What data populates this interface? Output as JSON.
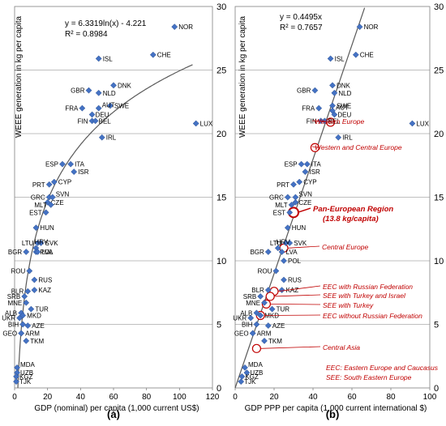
{
  "chart_data": [
    {
      "type": "scatter",
      "panel_label": "(a)",
      "xlabel": "GDP (nominal) per capita (1,000 current US$)",
      "ylabel": "WEEE generation in kg per capita",
      "xlim": [
        0,
        120
      ],
      "ylim": [
        0,
        30
      ],
      "xticks": [
        "0",
        "20",
        "40",
        "60",
        "80",
        "100",
        "120"
      ],
      "yticks": [
        "0",
        "5",
        "10",
        "15",
        "20",
        "25",
        "30"
      ],
      "grid": "horizontal",
      "equation": "y = 6.3319ln(x) - 4.221",
      "r_squared": "R² = 0.8984",
      "trendline": {
        "type": "log",
        "a": 6.3319,
        "b": -4.221
      },
      "points": [
        {
          "label": "NOR",
          "x": 97,
          "y": 28.4
        },
        {
          "label": "ISL",
          "x": 51,
          "y": 25.9
        },
        {
          "label": "CHE",
          "x": 84,
          "y": 26.2
        },
        {
          "label": "DNK",
          "x": 60,
          "y": 23.8
        },
        {
          "label": "GBR",
          "x": 45,
          "y": 23.4
        },
        {
          "label": "NLD",
          "x": 51,
          "y": 23.2
        },
        {
          "label": "SWE",
          "x": 58,
          "y": 22.2
        },
        {
          "label": "FRA",
          "x": 41,
          "y": 22.0
        },
        {
          "label": "AUT",
          "x": 51,
          "y": 22.0
        },
        {
          "label": "DEU",
          "x": 47,
          "y": 21.5
        },
        {
          "label": "FIN",
          "x": 47,
          "y": 21.0
        },
        {
          "label": "BEL",
          "x": 49,
          "y": 21.0
        },
        {
          "label": "LUX",
          "x": 110,
          "y": 20.8
        },
        {
          "label": "IRL",
          "x": 53,
          "y": 19.7
        },
        {
          "label": "ESP",
          "x": 29,
          "y": 17.6
        },
        {
          "label": "ITA",
          "x": 34,
          "y": 17.6
        },
        {
          "label": "ISR",
          "x": 36,
          "y": 17.0
        },
        {
          "label": "CYP",
          "x": 24,
          "y": 16.2
        },
        {
          "label": "PRT",
          "x": 21,
          "y": 16.0
        },
        {
          "label": "GRC",
          "x": 21,
          "y": 15.0
        },
        {
          "label": "SVN",
          "x": 23,
          "y": 15.0
        },
        {
          "label": "CZE",
          "x": 20,
          "y": 14.6
        },
        {
          "label": "MLT",
          "x": 22,
          "y": 14.4
        },
        {
          "label": "EST",
          "x": 19,
          "y": 13.8
        },
        {
          "label": "HUN",
          "x": 13,
          "y": 12.6
        },
        {
          "label": "LTU",
          "x": 14,
          "y": 11.4
        },
        {
          "label": "SVK",
          "x": 16,
          "y": 11.4
        },
        {
          "label": "HRV",
          "x": 13,
          "y": 11.0
        },
        {
          "label": "POL",
          "x": 13,
          "y": 10.7
        },
        {
          "label": "LVA",
          "x": 14,
          "y": 10.7
        },
        {
          "label": "BGR",
          "x": 7,
          "y": 10.7
        },
        {
          "label": "ROU",
          "x": 9,
          "y": 9.2
        },
        {
          "label": "RUS",
          "x": 12,
          "y": 8.5
        },
        {
          "label": "BLR",
          "x": 8,
          "y": 7.6
        },
        {
          "label": "KAZ",
          "x": 12,
          "y": 7.7
        },
        {
          "label": "SRB",
          "x": 6,
          "y": 7.2
        },
        {
          "label": "MNE",
          "x": 7,
          "y": 6.7
        },
        {
          "label": "TUR",
          "x": 10,
          "y": 6.2
        },
        {
          "label": "ALB",
          "x": 4,
          "y": 5.9
        },
        {
          "label": "MKD",
          "x": 5,
          "y": 5.7
        },
        {
          "label": "UKR",
          "x": 3,
          "y": 5.5
        },
        {
          "label": "BIH",
          "x": 5,
          "y": 5.0
        },
        {
          "label": "AZE",
          "x": 8,
          "y": 4.9
        },
        {
          "label": "GEO",
          "x": 4,
          "y": 4.3
        },
        {
          "label": "ARM",
          "x": 4,
          "y": 4.3
        },
        {
          "label": "TKM",
          "x": 7,
          "y": 3.7
        },
        {
          "label": "MDA",
          "x": 1.5,
          "y": 1.6
        },
        {
          "label": "UZB",
          "x": 1.5,
          "y": 1.2
        },
        {
          "label": "KGZ",
          "x": 1,
          "y": 0.9
        },
        {
          "label": "TJK",
          "x": 1,
          "y": 0.5
        }
      ]
    },
    {
      "type": "scatter",
      "panel_label": "(b)",
      "xlabel": "GDP PPP per capita (1,000 current international $)",
      "ylabel": "WEEE generation in kg per capita",
      "xlim": [
        0,
        100
      ],
      "ylim": [
        0,
        30
      ],
      "xticks": [
        "0",
        "20",
        "40",
        "60",
        "80",
        "100"
      ],
      "yticks": [
        "0",
        "5",
        "10",
        "15",
        "20",
        "25",
        "30"
      ],
      "grid": "horizontal",
      "equation": "y = 0.4495x",
      "r_squared": "R² = 0.7657",
      "trendline": {
        "type": "linear",
        "slope": 0.4495
      },
      "points": [
        {
          "label": "NOR",
          "x": 64,
          "y": 28.4
        },
        {
          "label": "ISL",
          "x": 49,
          "y": 25.9
        },
        {
          "label": "CHE",
          "x": 62,
          "y": 26.2
        },
        {
          "label": "DNK",
          "x": 50,
          "y": 23.8
        },
        {
          "label": "GBR",
          "x": 41,
          "y": 23.4
        },
        {
          "label": "NLD",
          "x": 51,
          "y": 23.2
        },
        {
          "label": "SWE",
          "x": 50,
          "y": 22.2
        },
        {
          "label": "FRA",
          "x": 43,
          "y": 22.0
        },
        {
          "label": "AUT",
          "x": 50,
          "y": 21.8
        },
        {
          "label": "DEU",
          "x": 51,
          "y": 21.5
        },
        {
          "label": "FIN",
          "x": 44,
          "y": 21.0
        },
        {
          "label": "BEL",
          "x": 46,
          "y": 21.0
        },
        {
          "label": "LUX",
          "x": 91,
          "y": 20.8
        },
        {
          "label": "IRL",
          "x": 53,
          "y": 19.7
        },
        {
          "label": "ESP",
          "x": 34,
          "y": 17.6
        },
        {
          "label": "ITA",
          "x": 37,
          "y": 17.6
        },
        {
          "label": "ISR",
          "x": 36,
          "y": 17.0
        },
        {
          "label": "CYP",
          "x": 33,
          "y": 16.2
        },
        {
          "label": "PRT",
          "x": 30,
          "y": 16.0
        },
        {
          "label": "GRC",
          "x": 27,
          "y": 15.0
        },
        {
          "label": "SVN",
          "x": 31,
          "y": 15.0
        },
        {
          "label": "CZE",
          "x": 31,
          "y": 14.6
        },
        {
          "label": "MLT",
          "x": 29,
          "y": 14.4
        },
        {
          "label": "EST",
          "x": 28,
          "y": 13.8
        },
        {
          "label": "HUN",
          "x": 27,
          "y": 12.6
        },
        {
          "label": "LTU",
          "x": 26,
          "y": 11.4
        },
        {
          "label": "SVK",
          "x": 28,
          "y": 11.4
        },
        {
          "label": "HRV",
          "x": 22,
          "y": 11.0
        },
        {
          "label": "POL",
          "x": 25,
          "y": 10.0
        },
        {
          "label": "LVA",
          "x": 24,
          "y": 10.7
        },
        {
          "label": "BGR",
          "x": 17,
          "y": 10.7
        },
        {
          "label": "ROU",
          "x": 21,
          "y": 9.2
        },
        {
          "label": "RUS",
          "x": 25,
          "y": 8.5
        },
        {
          "label": "BLR",
          "x": 17,
          "y": 7.7
        },
        {
          "label": "KAZ",
          "x": 24,
          "y": 7.7
        },
        {
          "label": "SRB",
          "x": 13,
          "y": 7.2
        },
        {
          "label": "MNE",
          "x": 15,
          "y": 6.7
        },
        {
          "label": "TUR",
          "x": 19,
          "y": 6.2
        },
        {
          "label": "ALB",
          "x": 11,
          "y": 5.9
        },
        {
          "label": "MKD",
          "x": 13,
          "y": 5.7
        },
        {
          "label": "UKR",
          "x": 8,
          "y": 5.5
        },
        {
          "label": "BIH",
          "x": 11,
          "y": 5.0
        },
        {
          "label": "AZE",
          "x": 17,
          "y": 4.9
        },
        {
          "label": "GEO",
          "x": 9,
          "y": 4.3
        },
        {
          "label": "ARM",
          "x": 9,
          "y": 4.3
        },
        {
          "label": "TKM",
          "x": 15,
          "y": 3.7
        },
        {
          "label": "MDA",
          "x": 5,
          "y": 1.6
        },
        {
          "label": "UZB",
          "x": 6,
          "y": 1.2
        },
        {
          "label": "KGZ",
          "x": 3.5,
          "y": 0.9
        },
        {
          "label": "TJK",
          "x": 3,
          "y": 0.5
        }
      ],
      "regions": [
        {
          "label": "Western Europe",
          "x": 49,
          "y": 20.9,
          "emphasis": false
        },
        {
          "label": "Western and Central Europe",
          "x": 41,
          "y": 18.9,
          "emphasis": false
        },
        {
          "label": "Pan-European Region",
          "sublabel": "(13.8 kg/capita)",
          "x": 30,
          "y": 13.8,
          "emphasis": true
        },
        {
          "label": "Central Europe",
          "x": 25,
          "y": 11.0,
          "emphasis": false
        },
        {
          "label": "EEC with Russian Federation",
          "x": 20,
          "y": 7.6,
          "emphasis": false
        },
        {
          "label": "SEE with Turkey and Israel",
          "x": 18,
          "y": 7.2,
          "emphasis": false
        },
        {
          "label": "SEE with Turkey",
          "x": 16,
          "y": 6.6,
          "emphasis": false
        },
        {
          "label": "EEC without Russian Federation",
          "x": 13,
          "y": 5.7,
          "emphasis": false
        },
        {
          "label": "Central Asia",
          "x": 11,
          "y": 3.1,
          "emphasis": false
        }
      ],
      "notes": [
        "EEC: Eastern  Europe and Caucasus",
        "SEE: South Eastern Europe"
      ]
    }
  ],
  "colors": {
    "marker_fill": "#4472c4",
    "marker_stroke": "#2f528f",
    "trendline": "#595959",
    "annotation": "#c00000",
    "grid": "#808080",
    "axis": "#808080"
  }
}
